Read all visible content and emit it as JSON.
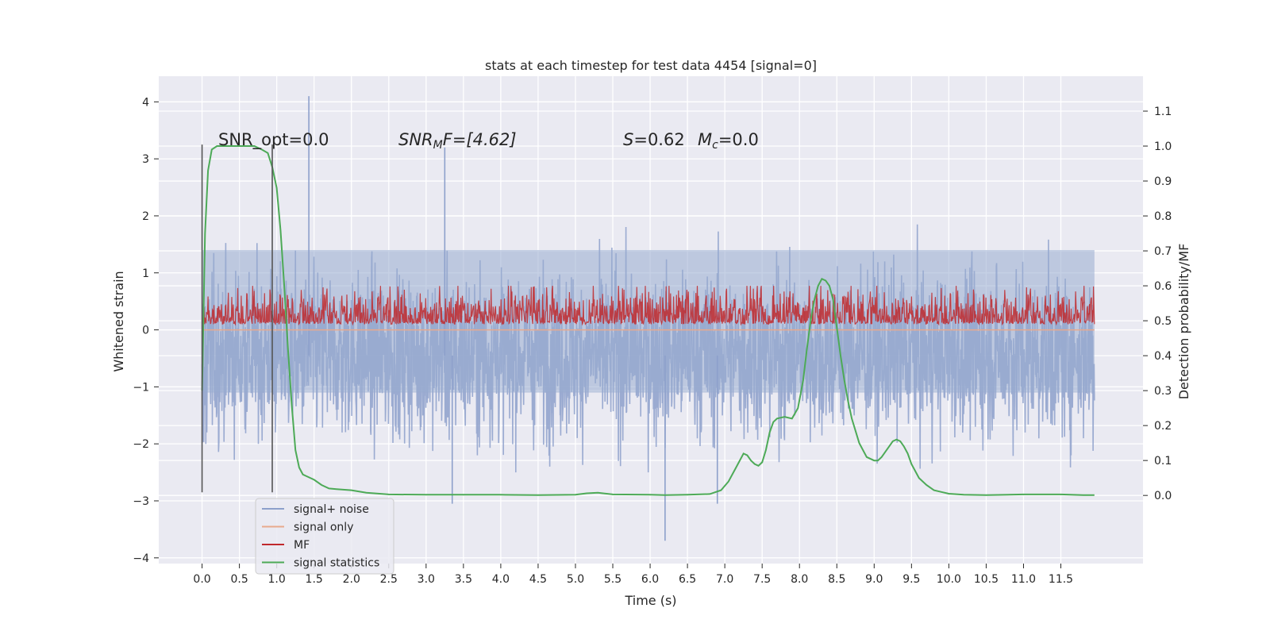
{
  "chart_data": {
    "type": "line",
    "title": "stats at each timestep for test data 4454 [signal=0]",
    "xlabel": "Time (s)",
    "ylabel_left": "Whitened strain",
    "ylabel_right": "Detection probability/MF",
    "xlim": [
      -0.58,
      12.6
    ],
    "ylim_left": [
      -4.1,
      4.45
    ],
    "ylim_right": [
      -0.195,
      1.2
    ],
    "x_ticks": [
      "0.0",
      "0.5",
      "1.0",
      "1.5",
      "2.0",
      "2.5",
      "3.0",
      "3.5",
      "4.0",
      "4.5",
      "5.0",
      "5.5",
      "6.0",
      "6.5",
      "7.0",
      "7.5",
      "8.0",
      "8.5",
      "9.0",
      "9.5",
      "10.0",
      "10.5",
      "11.0",
      "11.5"
    ],
    "y_ticks_left": [
      "4",
      "3",
      "2",
      "1",
      "0",
      "−1",
      "−2",
      "−3",
      "−4"
    ],
    "y_ticks_right": [
      "1.1",
      "1.0",
      "0.9",
      "0.8",
      "0.7",
      "0.6",
      "0.5",
      "0.4",
      "0.3",
      "0.2",
      "0.1",
      "0.0"
    ],
    "annotations": {
      "snr_opt": "SNR_opt=0.0",
      "snr_mf_label": "SNR",
      "snr_mf_sub": "M",
      "snr_mf_rest": "F=[4.62]",
      "s_label": "S",
      "s_value": "=0.62",
      "mc_label": "M",
      "mc_sub": "c",
      "mc_value": "=0.0"
    },
    "vlines_x": [
      0.0,
      0.94
    ],
    "legend": [
      {
        "label": "signal+ noise",
        "color": "#8da0cb"
      },
      {
        "label": "signal only",
        "color": "#e8a98c"
      },
      {
        "label": "MF",
        "color": "#c0282c"
      },
      {
        "label": "signal statistics",
        "color": "#4daa57"
      }
    ],
    "series": [
      {
        "name": "signal statistics",
        "axis": "right",
        "x": [
          0.0,
          0.04,
          0.08,
          0.13,
          0.2,
          0.3,
          0.4,
          0.5,
          0.6,
          0.7,
          0.8,
          0.88,
          0.94,
          1.0,
          1.05,
          1.1,
          1.15,
          1.2,
          1.25,
          1.3,
          1.35,
          1.4,
          1.5,
          1.6,
          1.7,
          1.8,
          2.0,
          2.2,
          2.5,
          3.0,
          3.5,
          4.0,
          4.5,
          5.0,
          5.15,
          5.3,
          5.5,
          6.0,
          6.2,
          6.5,
          6.8,
          6.95,
          7.05,
          7.15,
          7.25,
          7.3,
          7.35,
          7.4,
          7.45,
          7.5,
          7.55,
          7.6,
          7.65,
          7.7,
          7.8,
          7.9,
          7.98,
          8.05,
          8.1,
          8.15,
          8.2,
          8.25,
          8.3,
          8.35,
          8.4,
          8.45,
          8.5,
          8.55,
          8.6,
          8.65,
          8.7,
          8.8,
          8.9,
          9.0,
          9.05,
          9.1,
          9.15,
          9.2,
          9.25,
          9.3,
          9.35,
          9.4,
          9.45,
          9.5,
          9.6,
          9.7,
          9.8,
          9.9,
          10.0,
          10.2,
          10.5,
          11.0,
          11.5,
          11.8,
          11.95
        ],
        "values": [
          0.3,
          0.75,
          0.93,
          0.99,
          1.0,
          1.0,
          1.0,
          1.0,
          1.0,
          1.0,
          0.99,
          0.98,
          0.94,
          0.88,
          0.76,
          0.6,
          0.42,
          0.26,
          0.13,
          0.08,
          0.06,
          0.055,
          0.045,
          0.03,
          0.02,
          0.018,
          0.015,
          0.008,
          0.003,
          0.002,
          0.002,
          0.002,
          0.001,
          0.002,
          0.006,
          0.008,
          0.003,
          0.002,
          0.001,
          0.002,
          0.004,
          0.015,
          0.04,
          0.08,
          0.12,
          0.115,
          0.1,
          0.09,
          0.085,
          0.095,
          0.13,
          0.18,
          0.21,
          0.22,
          0.225,
          0.22,
          0.25,
          0.33,
          0.42,
          0.5,
          0.56,
          0.6,
          0.62,
          0.615,
          0.6,
          0.56,
          0.48,
          0.4,
          0.33,
          0.27,
          0.22,
          0.15,
          0.11,
          0.1,
          0.1,
          0.11,
          0.125,
          0.14,
          0.155,
          0.16,
          0.155,
          0.14,
          0.12,
          0.09,
          0.05,
          0.03,
          0.015,
          0.01,
          0.005,
          0.002,
          0.001,
          0.003,
          0.003,
          0.001,
          0.001
        ]
      },
      {
        "name": "signal+ noise",
        "axis": "left",
        "description_level": "random noise band",
        "x_range": [
          0.0,
          11.95
        ],
        "center": -0.45,
        "spread": 1.3,
        "spikes": [
          [
            1.43,
            4.1
          ],
          [
            3.25,
            3.2
          ],
          [
            6.2,
            -3.7
          ],
          [
            3.35,
            -3.05
          ],
          [
            6.9,
            -3.05
          ]
        ]
      },
      {
        "name": "MF",
        "axis": "right",
        "x_range": [
          0.0,
          11.95
        ],
        "baseline": 0.5,
        "spread": 0.08,
        "max_spike": 0.6
      },
      {
        "name": "signal only",
        "axis": "left",
        "x_range": [
          0.0,
          11.95
        ],
        "value": 0.0
      }
    ]
  }
}
